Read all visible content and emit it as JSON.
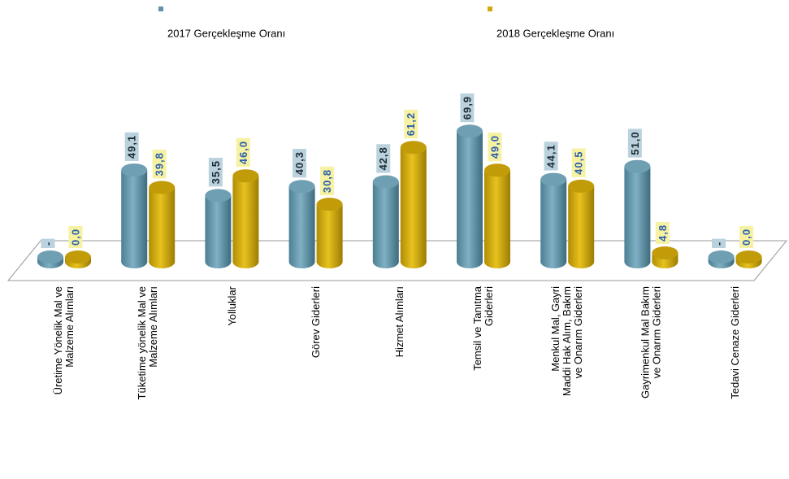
{
  "chart_data": {
    "type": "bar",
    "categories": [
      "Üretime Yönelik Mal ve\nMalzeme Alımları",
      "Tüketime yönelik Mal ve\nMalzeme Alımları",
      "Yolluklar",
      "Görev Giderleri",
      "Hizmet Alımları",
      "Temsil ve Tanıtma\nGiderleri",
      "Menkul Mal, Gayri\nMaddi Hak Alım, Bakım\nve Onarım Giderleri",
      "Gayrimenkul Mal Bakım\nve Onarım Giderleri",
      "Tedavi Cenaze Giderleri"
    ],
    "series": [
      {
        "name": "2017 Gerçekleşme Oranı",
        "color": "#5f93a8",
        "values": [
          0,
          49.1,
          35.5,
          40.3,
          42.8,
          69.9,
          44.1,
          51.0,
          0
        ],
        "value_labels": [
          "-",
          "49,1",
          "35,5",
          "40,3",
          "42,8",
          "69,9",
          "44,1",
          "51,0",
          "-"
        ]
      },
      {
        "name": "2018 Gerçekleşme Oranı",
        "color": "#d1a90c",
        "values": [
          0.0,
          39.8,
          46.0,
          30.8,
          61.2,
          49.0,
          40.5,
          4.8,
          0.0
        ],
        "value_labels": [
          "0,0",
          "39,8",
          "46,0",
          "30,8",
          "61,2",
          "49,0",
          "40,5",
          "4,8",
          "0,0"
        ]
      }
    ],
    "ylim": [
      0,
      80
    ]
  }
}
